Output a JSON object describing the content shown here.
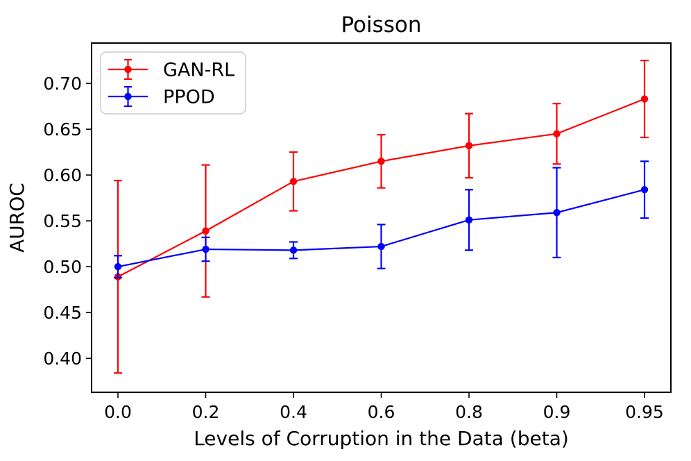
{
  "chart_data": {
    "type": "line",
    "title": "Poisson",
    "xlabel": "Levels of Corruption in the Data (beta)",
    "ylabel": "AUROC",
    "categories": [
      "0.0",
      "0.2",
      "0.4",
      "0.6",
      "0.8",
      "0.9",
      "0.95"
    ],
    "yticks": [
      "0.40",
      "0.45",
      "0.50",
      "0.55",
      "0.60",
      "0.65",
      "0.70"
    ],
    "ylim": [
      0.363,
      0.744
    ],
    "grid": false,
    "legend_position": "upper left",
    "series": [
      {
        "name": "GAN-RL",
        "color": "#ff0000",
        "values": [
          0.489,
          0.539,
          0.593,
          0.615,
          0.632,
          0.645,
          0.683
        ],
        "errors": [
          0.105,
          0.072,
          0.032,
          0.029,
          0.035,
          0.033,
          0.042
        ]
      },
      {
        "name": "PPOD",
        "color": "#0000ff",
        "values": [
          0.5,
          0.519,
          0.518,
          0.522,
          0.551,
          0.559,
          0.584
        ],
        "errors": [
          0.012,
          0.013,
          0.009,
          0.024,
          0.033,
          0.049,
          0.031
        ]
      }
    ]
  }
}
